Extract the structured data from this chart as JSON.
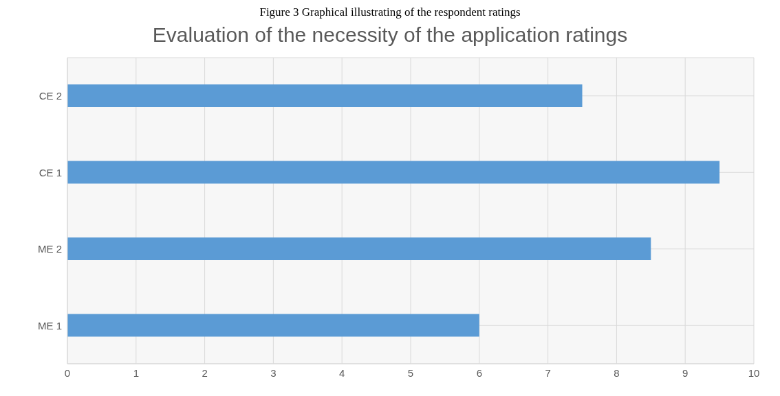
{
  "chart_data": {
    "type": "bar",
    "orientation": "horizontal",
    "title": "Evaluation of the necessity of the application ratings",
    "annotations": [
      "Figure 3 Graphical illustrating of the respondent ratings"
    ],
    "categories": [
      "CE 2",
      "CE 1",
      "ME 2",
      "ME 1"
    ],
    "values": [
      7.5,
      9.5,
      8.5,
      6
    ],
    "color": "#5b9bd5",
    "xlim": [
      0,
      10
    ],
    "xticks": [
      0,
      1,
      2,
      3,
      4,
      5,
      6,
      7,
      8,
      9,
      10
    ],
    "grid": true
  }
}
